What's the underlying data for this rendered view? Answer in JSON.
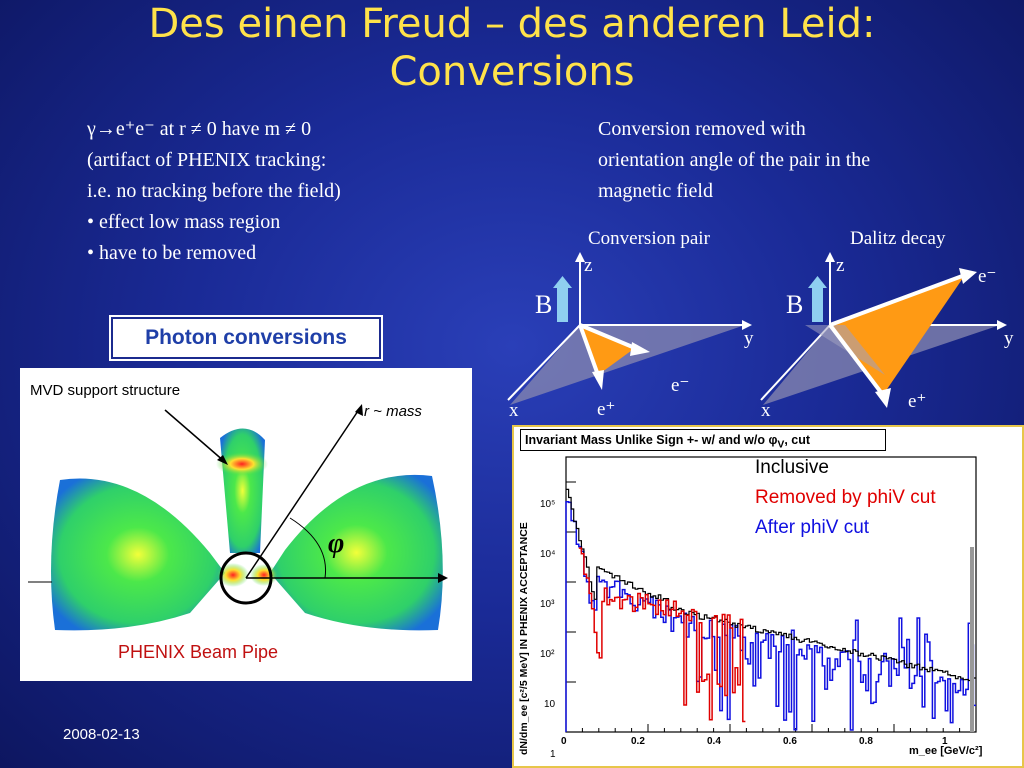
{
  "title": {
    "line1": "Des einen Freud – des anderen Leid:",
    "line2": "Conversions"
  },
  "left_text": {
    "line1": "γ→e⁺e⁻ at r ≠ 0 have m ≠ 0",
    "line2": "(artifact of PHENIX tracking:",
    "line3": "i.e. no tracking before the field)",
    "line4": "• effect low mass region",
    "line5": "• have to be removed"
  },
  "right_text": {
    "line1": "Conversion removed with",
    "line2": "orientation angle of the pair in the",
    "line3": "magnetic field"
  },
  "conversion_diagram": {
    "title": "Conversion pair",
    "axis_z": "z",
    "axis_y": "y",
    "axis_x": "x",
    "field": "B",
    "electron": "e⁻",
    "positron": "e⁺"
  },
  "dalitz_diagram": {
    "title": "Dalitz decay",
    "axis_z": "z",
    "axis_y": "y",
    "axis_x": "x",
    "field": "B",
    "electron": "e⁻",
    "positron": "e⁺"
  },
  "photon_conversions_label": "Photon conversions",
  "detector_panel": {
    "mvd_label": "MVD support structure",
    "r_label": "r ~ mass",
    "phi_label": "φ",
    "beampipe_label": "PHENIX Beam Pipe"
  },
  "mass_plot": {
    "header": "Invariant Mass Unlike Sign +- w/ and w/o φ",
    "header_sub": "V",
    "header_tail": ", cut",
    "legend": {
      "inclusive": "Inclusive",
      "removed": "Removed by phiV cut",
      "after": "After phiV cut"
    },
    "colors": {
      "inclusive": "#000000",
      "removed": "#e00000",
      "after": "#1010e0"
    },
    "ylabel": "dN/dm_ee [c²/5 MeV] IN PHENIX ACCEPTANCE",
    "xlabel": "m_ee [GeV/c²]",
    "y_ticks": [
      "10⁵",
      "10⁴",
      "10³",
      "10²",
      "10",
      "1"
    ],
    "x_ticks": [
      "0",
      "0.2",
      "0.4",
      "0.6",
      "0.8",
      "1"
    ]
  },
  "footer_date": "2008-02-13"
}
